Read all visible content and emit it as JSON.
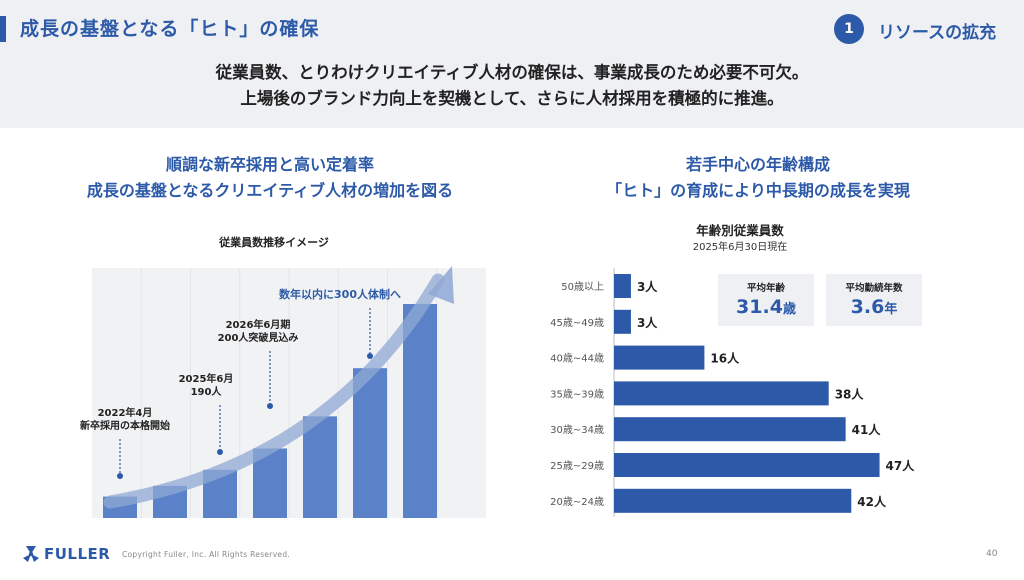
{
  "header": {
    "title": "成長の基盤となる「ヒト」の確保",
    "section_number": "1",
    "section_label": "リソースの拡充"
  },
  "lead": {
    "line1": "従業員数、とりわけクリエイティブ人材の確保は、事業成長のため必要不可欠。",
    "line2": "上場後のブランド力向上を契機として、さらに人材採用を積極的に推進。"
  },
  "left_panel": {
    "heading_line1": "順調な新卒採用と高い定着率",
    "heading_line2": "成長の基盤となるクリエイティブ人材の増加を図る"
  },
  "right_panel": {
    "heading_line1": "若手中心の年齢構成",
    "heading_line2": "「ヒト」の育成により中長期の成長を実現",
    "stats": [
      {
        "label": "平均年齢",
        "value": "31.4",
        "unit": "歳"
      },
      {
        "label": "平均勤続年数",
        "value": "3.6",
        "unit": "年"
      }
    ]
  },
  "chart_data": [
    {
      "type": "bar",
      "title": "従業員数推移イメージ",
      "categories": [
        "",
        "",
        "",
        "",
        "",
        "",
        ""
      ],
      "values": [
        20,
        30,
        45,
        65,
        95,
        140,
        200
      ],
      "ylim": [
        0,
        200
      ],
      "annotations": [
        {
          "bar_index": 0,
          "lines": [
            "2022年4月",
            "新卒採用の本格開始"
          ]
        },
        {
          "bar_index": 2,
          "lines": [
            "2025年6月",
            "190人"
          ]
        },
        {
          "bar_index": 3,
          "lines": [
            "2026年6月期",
            "200人突破見込み"
          ]
        },
        {
          "bar_index": 5,
          "lines": [
            "数年以内に300人体制へ"
          ]
        }
      ],
      "colors": {
        "bar": "#5b82c8",
        "arrow": "#8fa8d4",
        "background": "#f1f2f4",
        "annotation": "#2d5aa8"
      }
    },
    {
      "type": "bar",
      "orientation": "horizontal",
      "title": "年齢別従業員数",
      "subtitle": "2025年6月30日現在",
      "categories": [
        "50歳以上",
        "45歳~49歳",
        "40歳~44歳",
        "35歳~39歳",
        "30歳~34歳",
        "25歳~29歳",
        "20歳~24歳"
      ],
      "values": [
        3,
        3,
        16,
        38,
        41,
        47,
        42
      ],
      "value_labels": [
        "3人",
        "3人",
        "16人",
        "38人",
        "41人",
        "47人",
        "42人"
      ],
      "xlim": [
        0,
        50
      ],
      "colors": {
        "bar": "#2d5aa8"
      }
    }
  ],
  "footer": {
    "logo": "FULLER",
    "copyright": "Copyright Fuller, Inc. All Rights Reserved.",
    "page": "40"
  },
  "colors": {
    "accent": "#2d5aa8",
    "band": "#eef0f3"
  },
  "icons": {
    "logo": "fuller-logo-icon"
  }
}
